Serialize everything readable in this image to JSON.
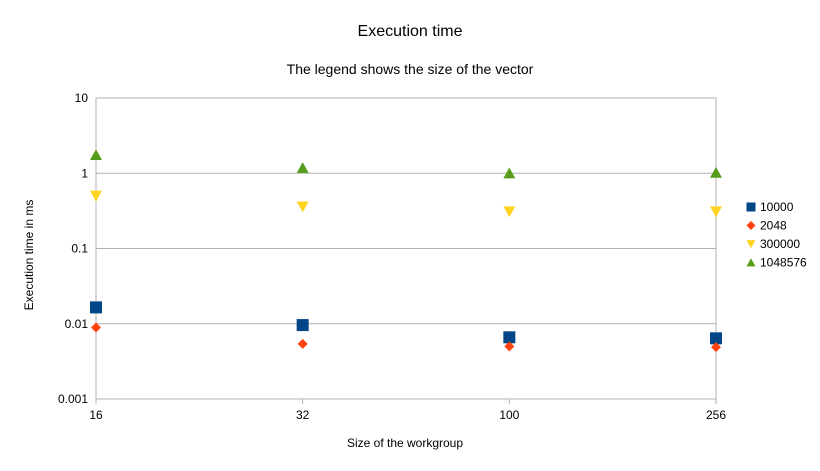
{
  "chart_data": {
    "type": "scatter",
    "title": "Execution time",
    "subtitle": "The legend shows the size of the vector",
    "xlabel": "Size of the workgroup",
    "ylabel": "Execution time in ms",
    "categories": [
      "16",
      "32",
      "100",
      "256"
    ],
    "y_scale": "log",
    "ylim": [
      0.001,
      10
    ],
    "y_ticks": [
      "0.001",
      "0.01",
      "0.1",
      "1",
      "10"
    ],
    "grid": true,
    "legend_position": "right",
    "series": [
      {
        "name": "10000",
        "marker": "square",
        "color": "#004586",
        "values": [
          0.0165,
          0.0096,
          0.0066,
          0.0064
        ]
      },
      {
        "name": "2048",
        "marker": "diamond",
        "color": "#ff420e",
        "values": [
          0.0089,
          0.0054,
          0.005,
          0.0049
        ]
      },
      {
        "name": "300000",
        "marker": "triangle-down",
        "color": "#ffd320",
        "values": [
          0.5,
          0.36,
          0.31,
          0.31
        ]
      },
      {
        "name": "1048576",
        "marker": "triangle-up",
        "color": "#579d1c",
        "values": [
          1.75,
          1.18,
          1.0,
          1.02
        ]
      }
    ]
  }
}
